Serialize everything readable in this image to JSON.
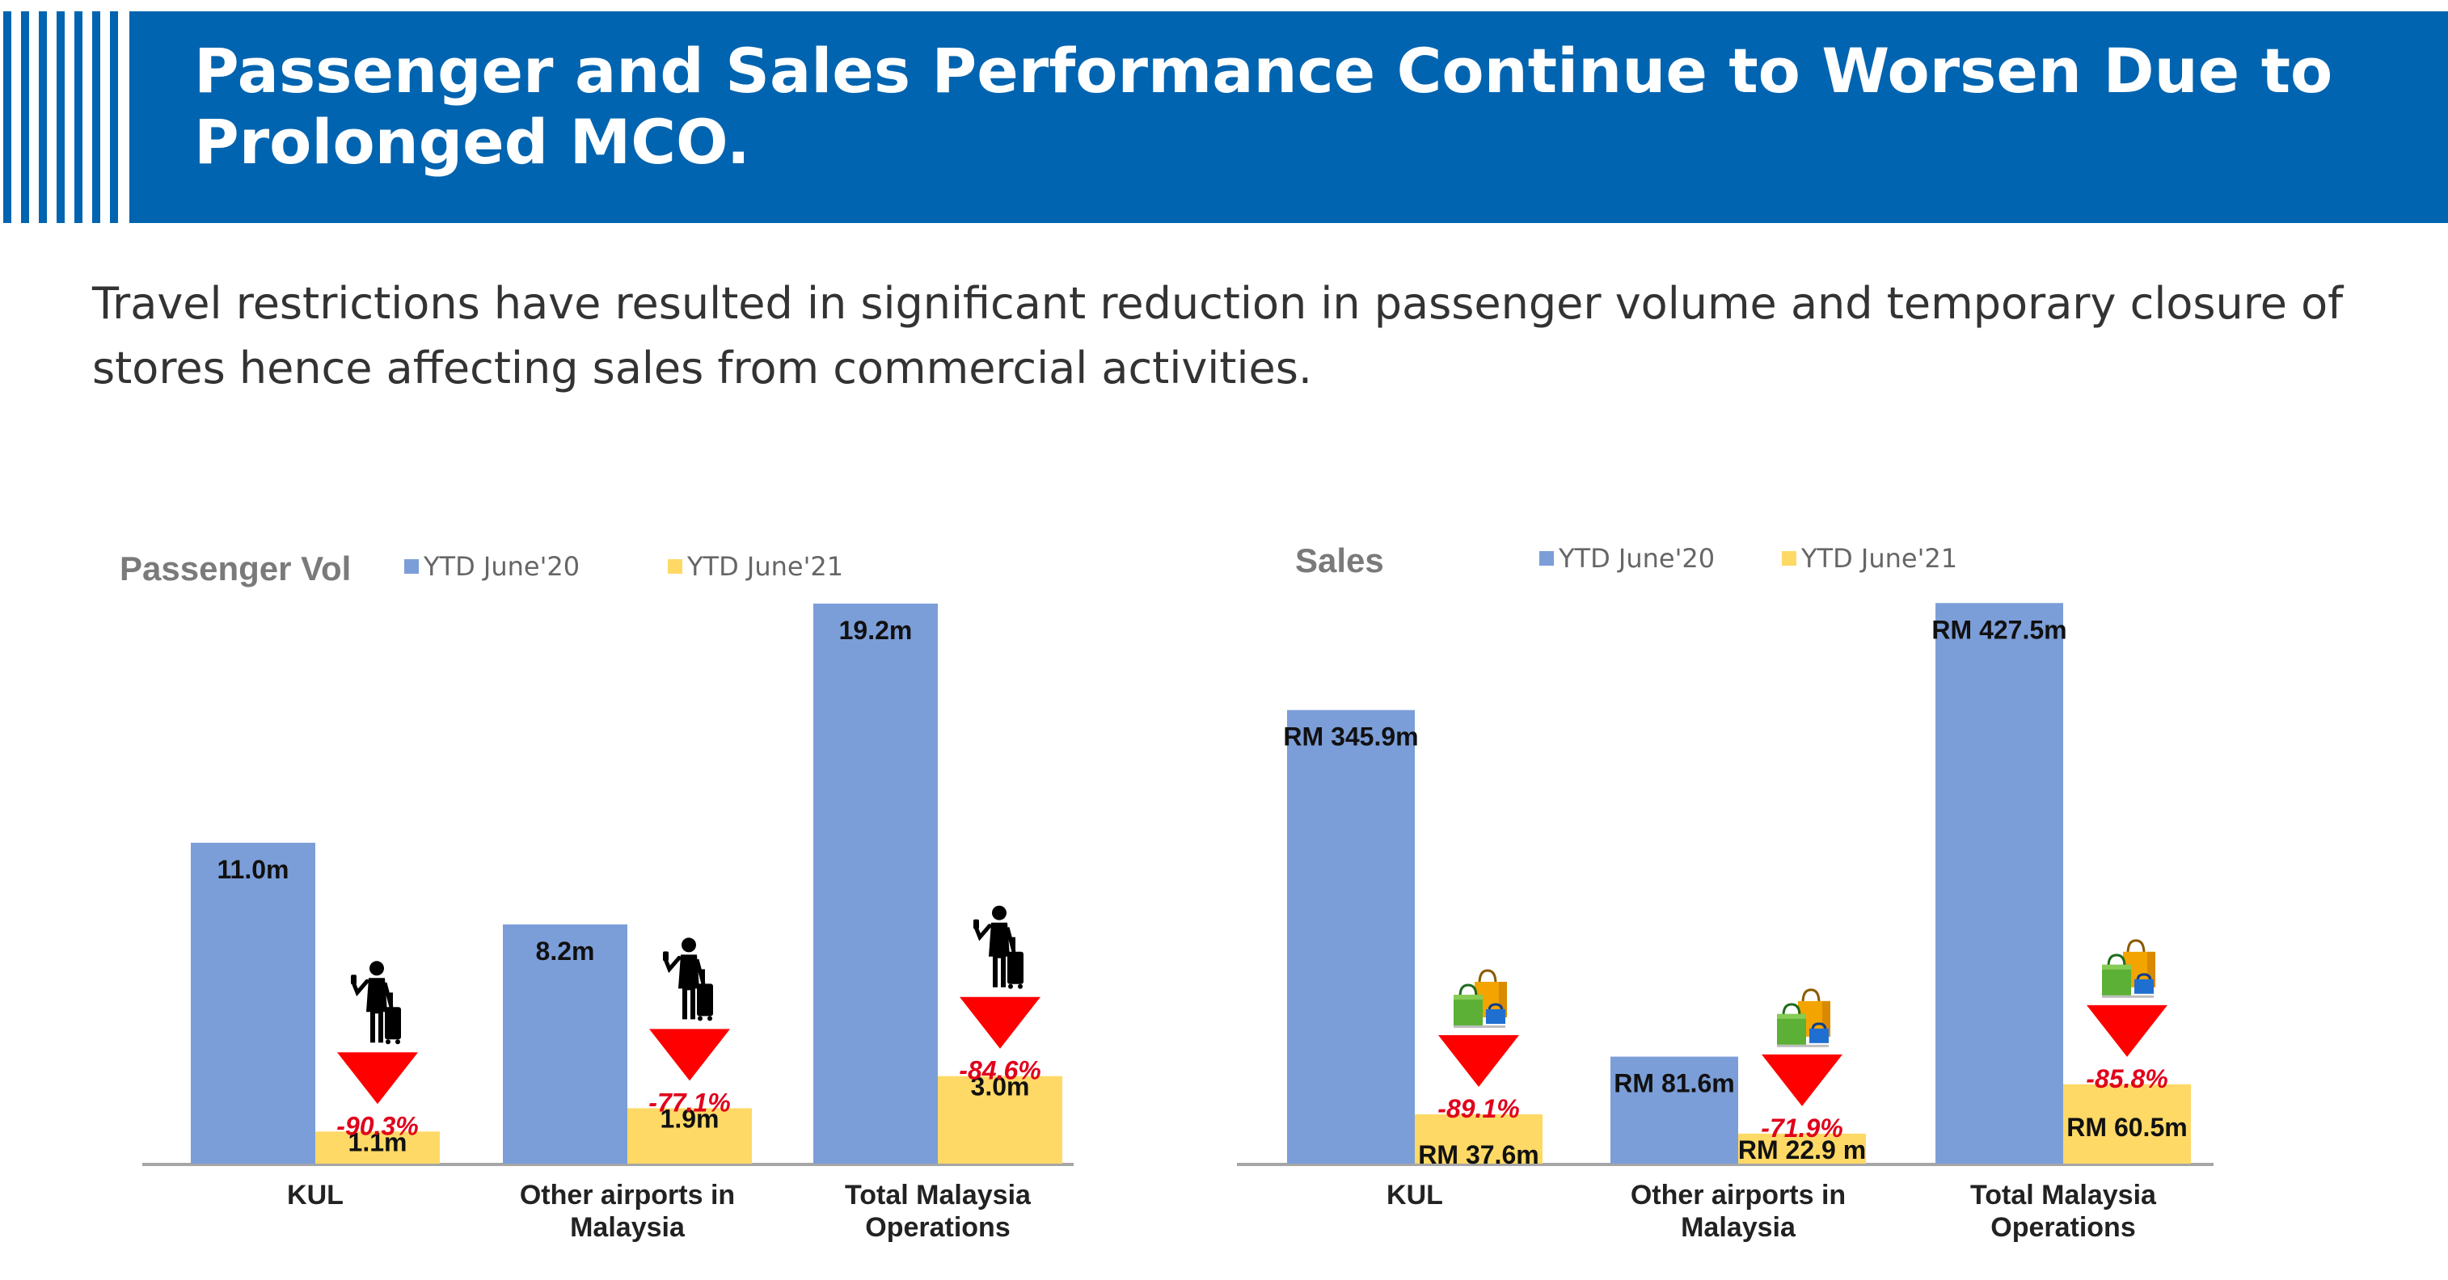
{
  "header": {
    "title": "Passenger and Sales Performance Continue to Worsen Due to Prolonged MCO.",
    "subtitle": "Travel restrictions have resulted in significant reduction in passenger volume and temporary closure of stores hence affecting sales from commercial activities."
  },
  "colors": {
    "banner": "#0064b0",
    "series_2020": "#7c9ed8",
    "series_2021": "#ffd966",
    "decline_arrow": "#ff0000",
    "decline_text": "#e0001b"
  },
  "chart_data": [
    {
      "type": "bar",
      "title": "Passenger Vol",
      "legend_position": "top",
      "categories": [
        [
          "KUL"
        ],
        [
          "Other airports in",
          "Malaysia"
        ],
        [
          "Total Malaysia",
          "Operations"
        ]
      ],
      "series": [
        {
          "name": "YTD June'20",
          "values": [
            11.0,
            8.2,
            19.2
          ],
          "labels": [
            "11.0m",
            "8.2m",
            "19.2m"
          ]
        },
        {
          "name": "YTD June'21",
          "values": [
            1.1,
            1.9,
            3.0
          ],
          "labels": [
            "1.1m",
            "1.9m",
            "3.0m"
          ]
        }
      ],
      "changes": [
        "-90.3%",
        "-77.1%",
        "-84.6%"
      ],
      "change_icon": "traveler-luggage-icon",
      "ylim": [
        0,
        20.5
      ],
      "grid": false
    },
    {
      "type": "bar",
      "title": "Sales",
      "legend_position": "top",
      "categories": [
        [
          "KUL"
        ],
        [
          "Other airports in",
          "Malaysia"
        ],
        [
          "Total Malaysia",
          "Operations"
        ]
      ],
      "series": [
        {
          "name": "YTD June'20",
          "values": [
            345.9,
            81.6,
            427.5
          ],
          "labels": [
            "RM 345.9m",
            "RM 81.6m",
            "RM 427.5m"
          ]
        },
        {
          "name": "YTD June'21",
          "values": [
            37.6,
            22.9,
            60.5
          ],
          "labels": [
            "RM 37.6m",
            "RM 22.9 m",
            "RM 60.5m"
          ]
        }
      ],
      "changes": [
        "-89.1%",
        "-71.9%",
        "-85.8%"
      ],
      "change_icon": "shopping-bags-icon",
      "ylim": [
        0,
        456
      ],
      "grid": false
    }
  ]
}
